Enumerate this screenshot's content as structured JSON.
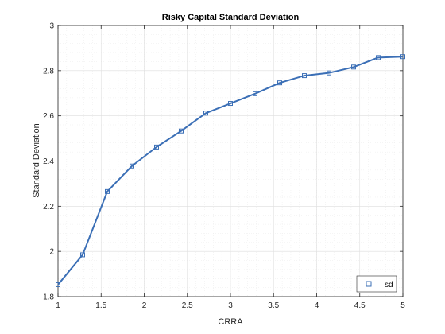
{
  "chart_data": {
    "type": "line",
    "title": "Risky Capital Standard Deviation",
    "xlabel": "CRRA",
    "ylabel": "Standard Deviation",
    "xlim": [
      1,
      5
    ],
    "ylim": [
      1.8,
      3
    ],
    "xticks": [
      1,
      1.5,
      2,
      2.5,
      3,
      3.5,
      4,
      4.5,
      5
    ],
    "xtick_labels": [
      "1",
      "1.5",
      "2",
      "2.5",
      "3",
      "3.5",
      "4",
      "4.5",
      "5"
    ],
    "yticks": [
      1.8,
      2,
      2.2,
      2.4,
      2.6,
      2.8,
      3
    ],
    "ytick_labels": [
      "1.8",
      "2",
      "2.2",
      "2.4",
      "2.6",
      "2.8",
      "3"
    ],
    "grid": true,
    "minor_grid": true,
    "legend_position": "bottom-right",
    "series": [
      {
        "name": "sd",
        "color": "#3b6fb6",
        "marker": "square",
        "x": [
          1,
          1.2857,
          1.5714,
          1.8571,
          2.1429,
          2.4286,
          2.7143,
          3,
          3.2857,
          3.5714,
          3.8571,
          4.1429,
          4.4286,
          4.7143,
          5
        ],
        "y": [
          1.853,
          1.985,
          2.265,
          2.378,
          2.462,
          2.533,
          2.612,
          2.655,
          2.698,
          2.746,
          2.778,
          2.79,
          2.816,
          2.858,
          2.862
        ]
      }
    ]
  }
}
